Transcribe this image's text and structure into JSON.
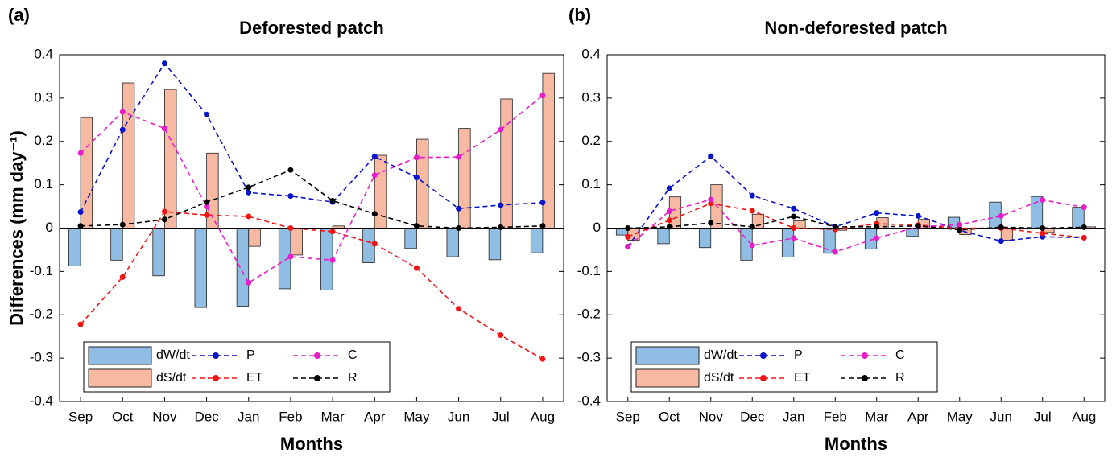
{
  "chart_data": [
    {
      "type": "combo",
      "panel_label": "(a)",
      "title": "Deforested patch",
      "xlabel": "Months",
      "ylabel": "Differences (mm day⁻¹)",
      "categories": [
        "Sep",
        "Oct",
        "Nov",
        "Dec",
        "Jan",
        "Feb",
        "Mar",
        "Apr",
        "May",
        "Jun",
        "Jul",
        "Aug"
      ],
      "ylim": [
        -0.4,
        0.4
      ],
      "yticks": [
        -0.4,
        -0.3,
        -0.2,
        -0.1,
        0,
        0.1,
        0.2,
        0.3,
        0.4
      ],
      "legend": "lower left",
      "series": [
        {
          "name": "dW/dt",
          "type": "bar",
          "color": "#8fbde3",
          "values": [
            -0.087,
            -0.074,
            -0.11,
            -0.183,
            -0.18,
            -0.14,
            -0.143,
            -0.08,
            -0.047,
            -0.066,
            -0.073,
            -0.057
          ]
        },
        {
          "name": "dS/dt",
          "type": "bar",
          "color": "#f7b9a1",
          "values": [
            0.255,
            0.335,
            0.32,
            0.173,
            -0.042,
            -0.062,
            0.005,
            0.168,
            0.205,
            0.23,
            0.298,
            0.357
          ]
        },
        {
          "name": "P",
          "type": "line",
          "color": "#0a14c8",
          "values": [
            0.037,
            0.227,
            0.38,
            0.262,
            0.082,
            0.074,
            0.06,
            0.165,
            0.117,
            0.045,
            0.053,
            0.059
          ]
        },
        {
          "name": "ET",
          "type": "line",
          "color": "#f01414",
          "values": [
            -0.222,
            -0.113,
            0.038,
            0.03,
            0.027,
            0.0,
            -0.008,
            -0.036,
            -0.092,
            -0.186,
            -0.247,
            -0.302
          ]
        },
        {
          "name": "C",
          "type": "line",
          "color": "#e61ec8",
          "values": [
            0.173,
            0.268,
            0.23,
            0.05,
            -0.126,
            -0.066,
            -0.074,
            0.122,
            0.163,
            0.164,
            0.227,
            0.306
          ]
        },
        {
          "name": "R",
          "type": "line",
          "color": "#000000",
          "values": [
            0.005,
            0.008,
            0.02,
            0.06,
            0.094,
            0.134,
            0.063,
            0.033,
            0.005,
            0.0,
            0.002,
            0.005
          ]
        }
      ]
    },
    {
      "type": "combo",
      "panel_label": "(b)",
      "title": "Non-deforested patch",
      "xlabel": "Months",
      "categories": [
        "Sep",
        "Oct",
        "Nov",
        "Dec",
        "Jan",
        "Feb",
        "Mar",
        "Apr",
        "May",
        "Jun",
        "Jul",
        "Aug"
      ],
      "ylim": [
        -0.4,
        0.4
      ],
      "yticks": [
        -0.4,
        -0.3,
        -0.2,
        -0.1,
        0,
        0.1,
        0.2,
        0.3,
        0.4
      ],
      "legend": "lower left",
      "series": [
        {
          "name": "dW/dt",
          "type": "bar",
          "color": "#8fbde3",
          "values": [
            -0.016,
            -0.036,
            -0.045,
            -0.074,
            -0.067,
            -0.058,
            -0.048,
            -0.019,
            0.025,
            0.06,
            0.073,
            0.048
          ]
        },
        {
          "name": "dS/dt",
          "type": "bar",
          "color": "#f7b9a1",
          "values": [
            -0.028,
            0.072,
            0.1,
            0.032,
            0.017,
            -0.005,
            0.024,
            0.02,
            -0.015,
            -0.028,
            -0.01,
            0.003
          ]
        },
        {
          "name": "P",
          "type": "line",
          "color": "#0a14c8",
          "values": [
            -0.043,
            0.092,
            0.166,
            0.075,
            0.045,
            0.003,
            0.035,
            0.028,
            -0.005,
            -0.03,
            -0.02,
            -0.022
          ]
        },
        {
          "name": "ET",
          "type": "line",
          "color": "#f01414",
          "values": [
            -0.02,
            0.018,
            0.057,
            0.04,
            0.0,
            -0.003,
            0.01,
            0.007,
            0.0,
            0.0,
            -0.012,
            -0.022
          ]
        },
        {
          "name": "C",
          "type": "line",
          "color": "#e61ec8",
          "values": [
            -0.043,
            0.039,
            0.066,
            -0.04,
            -0.023,
            -0.055,
            -0.023,
            0.003,
            0.008,
            0.028,
            0.065,
            0.048
          ]
        },
        {
          "name": "R",
          "type": "line",
          "color": "#000000",
          "values": [
            0.0,
            0.003,
            0.012,
            0.003,
            0.027,
            0.003,
            0.003,
            0.005,
            -0.004,
            0.002,
            0.0,
            0.002
          ]
        }
      ]
    }
  ]
}
